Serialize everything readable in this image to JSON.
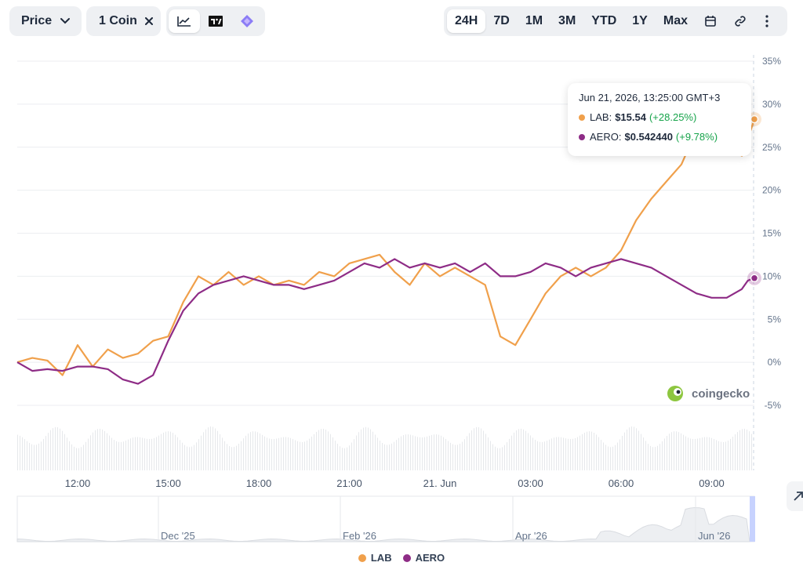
{
  "toolbar": {
    "price_label": "Price",
    "coins_label": "1 Coin",
    "ranges": [
      "24H",
      "7D",
      "1M",
      "3M",
      "YTD",
      "1Y",
      "Max"
    ],
    "active_range": "24H"
  },
  "tooltip": {
    "date": "Jun 21, 2026, 13:25:00 GMT+3",
    "rows": [
      {
        "name": "LAB",
        "value": "$15.54",
        "change": "(+28.25%)"
      },
      {
        "name": "AERO",
        "value": "$0.542440",
        "change": "(+9.78%)"
      }
    ]
  },
  "watermark": "coingecko",
  "colors": {
    "lab": "#f0a04b",
    "aero": "#8e2c86",
    "up": "#16a34a"
  },
  "chart_data": {
    "type": "line",
    "y_unit": "%",
    "ylim": [
      -5,
      35
    ],
    "y_ticks": [
      "35%",
      "30%",
      "25%",
      "20%",
      "15%",
      "10%",
      "5%",
      "0%",
      "-5%"
    ],
    "x_ticks": [
      "12:00",
      "15:00",
      "18:00",
      "21:00",
      "21. Jun",
      "03:00",
      "06:00",
      "09:00"
    ],
    "grid": true,
    "legend_position": "bottom",
    "navigator_labels": [
      "Dec '25",
      "Feb '26",
      "Apr '26",
      "Jun '26"
    ],
    "series": [
      {
        "name": "LAB",
        "color": "#f0a04b",
        "x": [
          10.0,
          10.5,
          11.0,
          11.5,
          12.0,
          12.5,
          13.0,
          13.5,
          14.0,
          14.5,
          15.0,
          15.5,
          16.0,
          16.5,
          17.0,
          17.5,
          18.0,
          18.5,
          19.0,
          19.5,
          20.0,
          20.5,
          21.0,
          21.5,
          22.0,
          22.5,
          23.0,
          23.5,
          24.0,
          24.5,
          25.0,
          25.5,
          26.0,
          26.5,
          27.0,
          27.5,
          28.0,
          28.5,
          29.0,
          29.5,
          30.0,
          30.5,
          31.0,
          31.5,
          32.0,
          32.5,
          33.0,
          33.5,
          34.0,
          34.2,
          34.416
        ],
        "y": [
          0.0,
          0.5,
          0.2,
          -1.5,
          2.0,
          -0.5,
          1.5,
          0.5,
          1.0,
          2.5,
          3.0,
          7.0,
          10.0,
          9.0,
          10.5,
          9.0,
          10.0,
          9.0,
          9.5,
          9.0,
          10.5,
          10.0,
          11.5,
          12.0,
          12.5,
          10.5,
          9.0,
          11.5,
          10.0,
          11.0,
          10.0,
          9.0,
          3.0,
          2.0,
          5.0,
          8.0,
          10.0,
          11.0,
          10.0,
          11.0,
          13.0,
          16.5,
          19.0,
          21.0,
          23.0,
          27.0,
          29.0,
          25.0,
          24.0,
          26.0,
          28.25
        ]
      },
      {
        "name": "AERO",
        "color": "#8e2c86",
        "x": [
          10.0,
          10.5,
          11.0,
          11.5,
          12.0,
          12.5,
          13.0,
          13.5,
          14.0,
          14.5,
          15.0,
          15.5,
          16.0,
          16.5,
          17.0,
          17.5,
          18.0,
          18.5,
          19.0,
          19.5,
          20.0,
          20.5,
          21.0,
          21.5,
          22.0,
          22.5,
          23.0,
          23.5,
          24.0,
          24.5,
          25.0,
          25.5,
          26.0,
          26.5,
          27.0,
          27.5,
          28.0,
          28.5,
          29.0,
          29.5,
          30.0,
          30.5,
          31.0,
          31.5,
          32.0,
          32.5,
          33.0,
          33.5,
          34.0,
          34.2,
          34.416
        ],
        "y": [
          0.0,
          -1.0,
          -0.8,
          -1.0,
          -0.5,
          -0.5,
          -0.8,
          -2.0,
          -2.5,
          -1.5,
          2.5,
          6.0,
          8.0,
          9.0,
          9.5,
          10.0,
          9.5,
          9.0,
          9.0,
          8.5,
          9.0,
          9.5,
          10.5,
          11.5,
          11.0,
          12.0,
          11.0,
          11.5,
          11.0,
          11.5,
          10.5,
          11.5,
          10.0,
          10.0,
          10.5,
          11.5,
          11.0,
          10.0,
          11.0,
          11.5,
          12.0,
          11.5,
          11.0,
          10.0,
          9.0,
          8.0,
          7.5,
          7.5,
          8.5,
          9.5,
          9.78
        ]
      }
    ]
  }
}
